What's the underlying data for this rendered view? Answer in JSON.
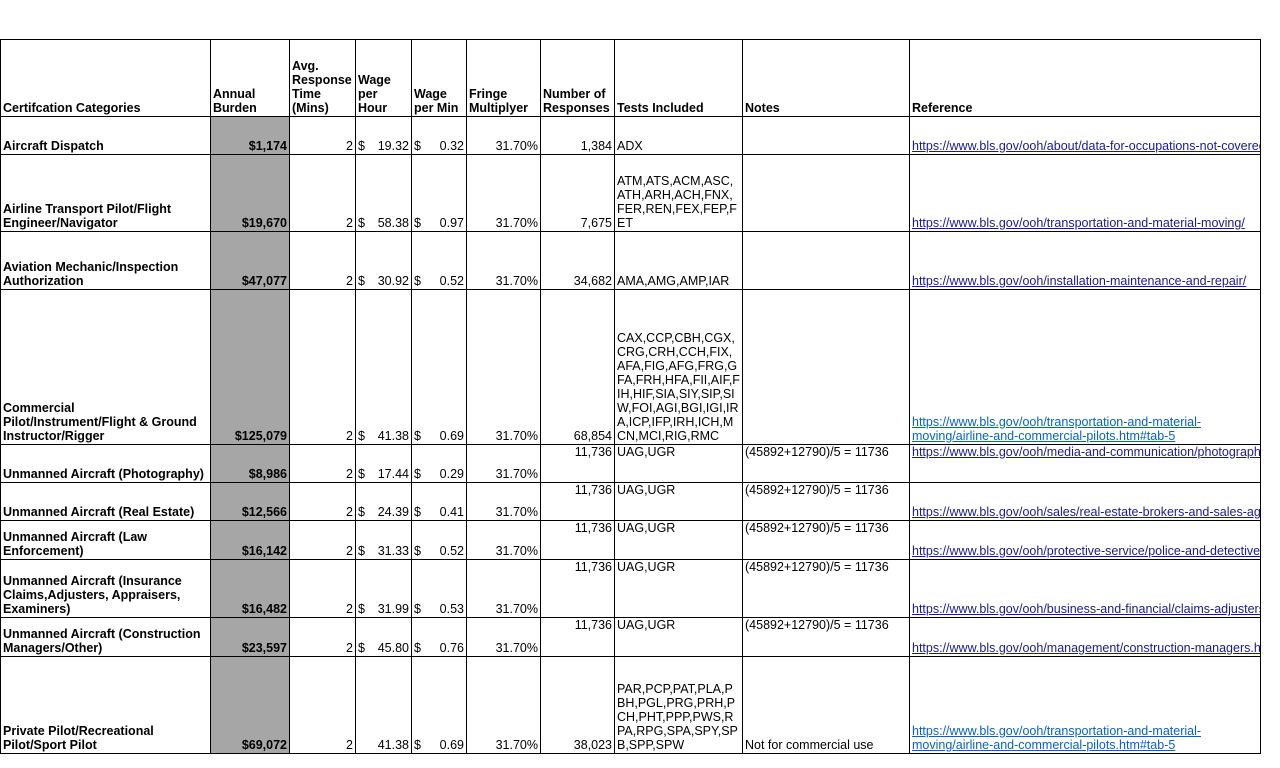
{
  "headers": [
    "Certifcation Categories",
    "Annual Burden",
    "Avg. Response Time (Mins)",
    "Wage per Hour",
    "Wage per Min",
    "Fringe Multiplyer",
    "Number of Responses",
    "Tests Included",
    "Notes",
    "Reference"
  ],
  "colors": {
    "burden_fill": "#a6a6a6",
    "link": "#1a1a8c",
    "link_wrapped": "#0563c1"
  },
  "rows": [
    {
      "category": "Aircraft Dispatch",
      "burden": "$1,174",
      "time": "2",
      "wage_hour": "19.32",
      "wage_min": "0.32",
      "fringe": "31.70%",
      "responses": "1,384",
      "tests": "ADX",
      "notes": "",
      "reference": "https://www.bls.gov/ooh/about/data-for-occupations-not-covered-in-detail.htm"
    },
    {
      "category": "Airline Transport Pilot/Flight Engineer/Navigator",
      "burden": "$19,670",
      "time": "2",
      "wage_hour": "58.38",
      "wage_min": "0.97",
      "fringe": "31.70%",
      "responses": "7,675",
      "tests": "ATM,ATS,ACM,ASC,ATH,ARH,ACH,FNX,FER,REN,FEX,FEP,FET",
      "notes": "",
      "reference": "https://www.bls.gov/ooh/transportation-and-material-moving/"
    },
    {
      "category": "Aviation Mechanic/Inspection Authorization",
      "burden": "$47,077",
      "time": "2",
      "wage_hour": "30.92",
      "wage_min": "0.52",
      "fringe": "31.70%",
      "responses": "34,682",
      "tests": "AMA,AMG,AMP,IAR",
      "notes": "",
      "reference": "https://www.bls.gov/ooh/installation-maintenance-and-repair/"
    },
    {
      "category": "Commercial Pilot/Instrument/Flight & Ground Instructor/Rigger",
      "burden": "$125,079",
      "time": "2",
      "wage_hour": "41.38",
      "wage_min": "0.69",
      "fringe": "31.70%",
      "responses": "68,854",
      "tests": "CAX,CCP,CBH,CGX,CRG,CRH,CCH,FIX,AFA,FIG,AFG,FRG,GFA,FRH,HFA,FII,AIF,FIH,HIF,SIA,SIY,SIP,SIW,FOI,AGI,BGI,IGI,IRA,ICP,IFP,IRH,ICH,MCN,MCI,RIG,RMC",
      "notes": "",
      "reference": "https://www.bls.gov/ooh/transportation-and-material-moving/airline-and-commercial-pilots.htm#tab-5"
    },
    {
      "category": "Unmanned Aircraft (Photography)",
      "burden": "$8,986",
      "time": "2",
      "wage_hour": "17.44",
      "wage_min": "0.29",
      "fringe": "31.70%",
      "responses": "11,736",
      "tests": "UAG,UGR",
      "notes": "(45892+12790)/5 = 11736",
      "reference": "https://www.bls.gov/ooh/media-and-communication/photographers.htm"
    },
    {
      "category": "Unmanned Aircraft (Real Estate)",
      "burden": "$12,566",
      "time": "2",
      "wage_hour": "24.39",
      "wage_min": "0.41",
      "fringe": "31.70%",
      "responses": "11,736",
      "tests": "UAG,UGR",
      "notes": "(45892+12790)/5 = 11736",
      "reference": "https://www.bls.gov/ooh/sales/real-estate-brokers-and-sales-agents.htm"
    },
    {
      "category": "Unmanned Aircraft (Law Enforcement)",
      "burden": "$16,142",
      "time": "2",
      "wage_hour": "31.33",
      "wage_min": "0.52",
      "fringe": "31.70%",
      "responses": "11,736",
      "tests": "UAG,UGR",
      "notes": "(45892+12790)/5 = 11736",
      "reference": "https://www.bls.gov/ooh/protective-service/police-and-detectives.htm"
    },
    {
      "category": "Unmanned Aircraft (Insurance Claims,Adjusters, Appraisers, Examiners)",
      "burden": "$16,482",
      "time": "2",
      "wage_hour": "31.99",
      "wage_min": "0.53",
      "fringe": "31.70%",
      "responses": "11,736",
      "tests": "UAG,UGR",
      "notes": "(45892+12790)/5 = 11736",
      "reference": "https://www.bls.gov/ooh/business-and-financial/claims-adjusters-appraisers-examiners-and-investigators.htm"
    },
    {
      "category": "Unmanned Aircraft (Construction Managers/Other)",
      "burden": "$23,597",
      "time": "2",
      "wage_hour": "45.80",
      "wage_min": "0.76",
      "fringe": "31.70%",
      "responses": "11,736",
      "tests": "UAG,UGR",
      "notes": "(45892+12790)/5 = 11736",
      "reference": "https://www.bls.gov/ooh/management/construction-managers.htm"
    },
    {
      "category": "Private Pilot/Recreational Pilot/Sport Pilot",
      "burden": "$69,072",
      "time": "2",
      "wage_hour": "41.38",
      "wage_min": "0.69",
      "fringe": "31.70%",
      "responses": "38,023",
      "tests": "PAR,PCP,PAT,PLA,PBH,PGL,PRG,PRH,PCH,PHT,PPP,PWS,RPA,RPG,SPA,SPY,SPB,SPP,SPW",
      "notes": "Not for commercial use",
      "reference": "https://www.bls.gov/ooh/transportation-and-material-moving/airline-and-commercial-pilots.htm#tab-5"
    }
  ],
  "currency_symbol": "$"
}
